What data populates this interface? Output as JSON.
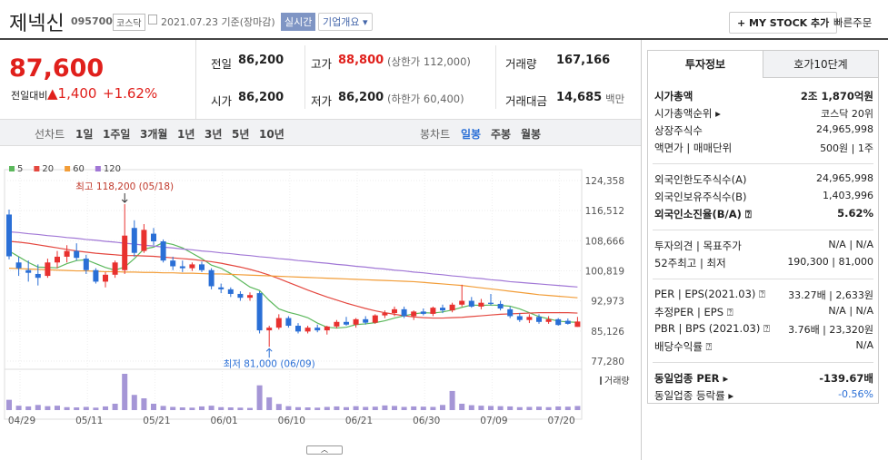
{
  "header": {
    "name": "제넥신",
    "code": "095700",
    "market": "코스닥",
    "date": "2021.07.23 기준(장마감)",
    "realtime": "실시간",
    "overview": "기업개요 ▾",
    "mystock": "+ MY STOCK 추가",
    "quick_order": "빠른주문"
  },
  "price": {
    "current": "87,600",
    "change_label": "전일대비",
    "change": "▲1,400",
    "change_pct": "+1.62%"
  },
  "quote": [
    [
      {
        "label": "전일",
        "value": "86,200"
      },
      {
        "label": "고가",
        "value": "88,800",
        "sub": "(상한가 112,000)"
      },
      {
        "label": "거래량",
        "value": "167,166"
      }
    ],
    [
      {
        "label": "시가",
        "value": "86,200"
      },
      {
        "label": "저가",
        "value": "86,200",
        "sub": "(하한가 60,400)"
      },
      {
        "label": "거래대금",
        "value": "14,685",
        "sub": "백만"
      }
    ]
  ],
  "periods": {
    "line_label": "선차트",
    "line_tabs": [
      "1일",
      "1주일",
      "3개월",
      "1년",
      "3년",
      "5년",
      "10년"
    ],
    "candle_label": "봉차트",
    "candle_tabs": [
      "일봉",
      "주봉",
      "월봉"
    ],
    "active": "일봉"
  },
  "chart": {
    "type": "candlestick",
    "ylim": [
      77280,
      124358
    ],
    "yticks": [
      {
        "value": 124358,
        "label": "124,358"
      },
      {
        "value": 116512,
        "label": "116,512"
      },
      {
        "value": 108666,
        "label": "108,666"
      },
      {
        "value": 100819,
        "label": "100,819"
      },
      {
        "value": 92973,
        "label": "92,973"
      },
      {
        "value": 85126,
        "label": "85,126"
      },
      {
        "value": 77280,
        "label": "77,280"
      }
    ],
    "up_color": "#e8312f",
    "down_color": "#2a6fd6",
    "volume_color": "#a596d6",
    "high_label": "최고 118,200 (05/18)",
    "low_label": "최저 81,000 (06/09)",
    "volume_label": "거래량",
    "categories": [
      "04/29",
      null,
      null,
      null,
      null,
      null,
      null,
      "05/11",
      null,
      null,
      null,
      null,
      null,
      null,
      "05/21",
      null,
      null,
      null,
      null,
      null,
      null,
      "06/01",
      null,
      null,
      null,
      null,
      null,
      null,
      "06/10",
      null,
      null,
      null,
      null,
      null,
      null,
      "06/21",
      null,
      null,
      null,
      null,
      null,
      null,
      "06/30",
      null,
      null,
      null,
      null,
      null,
      null,
      "07/09",
      null,
      null,
      null,
      null,
      null,
      null,
      "07/20",
      null,
      null,
      null
    ],
    "candles": [
      [
        115500,
        116800,
        103800,
        104600
      ],
      [
        103000,
        104500,
        99500,
        101500
      ],
      [
        101000,
        103500,
        98000,
        100300
      ],
      [
        100000,
        102500,
        97000,
        99000
      ],
      [
        99500,
        104000,
        99000,
        103000
      ],
      [
        103000,
        106000,
        101500,
        104500
      ],
      [
        104500,
        107500,
        103000,
        106000
      ],
      [
        106000,
        108000,
        103500,
        104200
      ],
      [
        104000,
        105000,
        100000,
        101000
      ],
      [
        101000,
        101500,
        97500,
        98000
      ],
      [
        98000,
        100500,
        96500,
        99800
      ],
      [
        99800,
        103500,
        99000,
        103000
      ],
      [
        101000,
        118200,
        100000,
        110000
      ],
      [
        112000,
        114000,
        104500,
        105500
      ],
      [
        106000,
        113000,
        105500,
        111500
      ],
      [
        110500,
        112000,
        107500,
        108500
      ],
      [
        108500,
        109000,
        103000,
        103500
      ],
      [
        103500,
        104500,
        101000,
        102000
      ],
      [
        102000,
        103500,
        100500,
        101500
      ],
      [
        101500,
        103000,
        100800,
        102500
      ],
      [
        102500,
        103200,
        100500,
        101000
      ],
      [
        101000,
        101500,
        96000,
        96800
      ],
      [
        96500,
        97500,
        95000,
        96000
      ],
      [
        96000,
        96500,
        94000,
        94800
      ],
      [
        94800,
        95500,
        93000,
        93800
      ],
      [
        93800,
        95200,
        93000,
        94500
      ],
      [
        95000,
        95500,
        84500,
        85300
      ],
      [
        85300,
        86500,
        81000,
        86000
      ],
      [
        86000,
        89500,
        85500,
        88500
      ],
      [
        88500,
        89000,
        86000,
        86500
      ],
      [
        86500,
        87200,
        84500,
        85000
      ],
      [
        85000,
        86500,
        84500,
        86000
      ],
      [
        86000,
        86800,
        84800,
        85300
      ],
      [
        85300,
        86500,
        84200,
        86300
      ],
      [
        86300,
        88000,
        85800,
        87500
      ],
      [
        87500,
        88800,
        86500,
        86800
      ],
      [
        86800,
        88500,
        86000,
        88200
      ],
      [
        88200,
        89000,
        86800,
        87300
      ],
      [
        87300,
        89500,
        87000,
        89200
      ],
      [
        89200,
        90500,
        88500,
        89800
      ],
      [
        89800,
        91500,
        89000,
        90800
      ],
      [
        90800,
        91500,
        88500,
        89000
      ],
      [
        89000,
        90500,
        88000,
        90200
      ],
      [
        90200,
        91000,
        89200,
        89600
      ],
      [
        89600,
        91500,
        89000,
        91200
      ],
      [
        91200,
        92000,
        89800,
        90500
      ],
      [
        90500,
        92500,
        90000,
        92000
      ],
      [
        92000,
        97200,
        91500,
        93000
      ],
      [
        93000,
        94000,
        91200,
        91500
      ],
      [
        91500,
        93500,
        90800,
        92500
      ],
      [
        92500,
        94800,
        91800,
        92200
      ],
      [
        92200,
        93000,
        90500,
        91000
      ],
      [
        90800,
        91500,
        88500,
        89000
      ],
      [
        89000,
        89800,
        87500,
        88000
      ],
      [
        88000,
        89500,
        87200,
        88800
      ],
      [
        88800,
        89500,
        87000,
        87500
      ],
      [
        87500,
        89000,
        87000,
        88200
      ],
      [
        88200,
        88500,
        86500,
        86700
      ],
      [
        87800,
        88400,
        86800,
        87000
      ],
      [
        86200,
        88800,
        86200,
        87600
      ]
    ],
    "volumes": [
      420000,
      180000,
      150000,
      210000,
      160000,
      180000,
      120000,
      110000,
      130000,
      100000,
      150000,
      260000,
      1480000,
      620000,
      480000,
      260000,
      170000,
      130000,
      110000,
      100000,
      150000,
      180000,
      120000,
      110000,
      100000,
      90000,
      1010000,
      520000,
      250000,
      160000,
      120000,
      110000,
      100000,
      130000,
      150000,
      120000,
      160000,
      130000,
      140000,
      190000,
      170000,
      130000,
      150000,
      140000,
      130000,
      210000,
      780000,
      260000,
      200000,
      180000,
      170000,
      160000,
      150000,
      120000,
      130000,
      140000,
      120000,
      150000,
      140000,
      167166
    ],
    "ma": [
      {
        "name": "5",
        "color": "#5cb85c",
        "values": [
          106000,
          104500,
          103000,
          101800,
          101700,
          101600,
          102700,
          103500,
          103700,
          102700,
          101700,
          101000,
          101800,
          104000,
          106500,
          107000,
          108200,
          107700,
          106800,
          105400,
          104000,
          102300,
          101500,
          100100,
          98300,
          96600,
          95700,
          93100,
          90900,
          90000,
          89400,
          88600,
          87200,
          86100,
          85900,
          86100,
          86800,
          87000,
          87300,
          87800,
          88500,
          89100,
          89600,
          89900,
          89800,
          90100,
          90600,
          91300,
          91900,
          91800,
          91900,
          91800,
          91600,
          90900,
          89900,
          88900,
          88300,
          87700,
          87500,
          87400
        ]
      },
      {
        "name": "20",
        "color": "#e4473f",
        "values": [
          108500,
          108300,
          108000,
          107600,
          107200,
          106800,
          106400,
          106000,
          105700,
          105400,
          105200,
          105000,
          104800,
          104800,
          104700,
          104600,
          104400,
          104200,
          104000,
          103800,
          103500,
          103200,
          102800,
          102300,
          101800,
          101200,
          100500,
          99700,
          98800,
          97800,
          96800,
          95800,
          94900,
          94000,
          93200,
          92400,
          91700,
          91000,
          90400,
          89900,
          89500,
          89100,
          88800,
          88600,
          88500,
          88500,
          88600,
          88700,
          88900,
          89100,
          89300,
          89500,
          89600,
          89700,
          89800,
          89900,
          89900,
          89900,
          89900,
          89800
        ]
      },
      {
        "name": "60",
        "color": "#f29d38",
        "values": [
          101500,
          101400,
          101300,
          101200,
          101100,
          101000,
          100900,
          100800,
          100800,
          100700,
          100600,
          100600,
          100500,
          100500,
          100400,
          100400,
          100300,
          100300,
          100200,
          100200,
          100100,
          100000,
          100000,
          99900,
          99800,
          99700,
          99600,
          99500,
          99400,
          99300,
          99200,
          99100,
          99000,
          98900,
          98800,
          98700,
          98600,
          98500,
          98400,
          98300,
          98200,
          98100,
          98000,
          97800,
          97600,
          97400,
          97200,
          97000,
          96700,
          96400,
          96100,
          95800,
          95500,
          95200,
          94900,
          94600,
          94400,
          94200,
          94000,
          93800
        ]
      },
      {
        "name": "120",
        "color": "#a177d6",
        "values": [
          111000,
          110800,
          110500,
          110300,
          110000,
          109800,
          109500,
          109300,
          109000,
          108800,
          108500,
          108300,
          108000,
          107800,
          107500,
          107300,
          107000,
          106800,
          106500,
          106300,
          106000,
          105800,
          105500,
          105300,
          105000,
          104800,
          104500,
          104300,
          104000,
          103800,
          103500,
          103300,
          103000,
          102800,
          102500,
          102300,
          102000,
          101800,
          101500,
          101300,
          101000,
          100800,
          100500,
          100300,
          100000,
          99800,
          99500,
          99300,
          99000,
          98800,
          98500,
          98300,
          98000,
          97800,
          97600,
          97400,
          97200,
          97000,
          96800,
          96600
        ]
      }
    ]
  },
  "invest": {
    "tabs": [
      "투자정보",
      "호가10단계"
    ],
    "sections": [
      [
        {
          "label": "시가총액",
          "value": "2조 1,870억원",
          "bold": true
        },
        {
          "label": "시가총액순위 ▸",
          "value": "코스닥 20위"
        },
        {
          "label": "상장주식수",
          "value": "24,965,998"
        },
        {
          "label": "액면가 | 매매단위",
          "value": "500원 | 1주"
        }
      ],
      [
        {
          "label": "외국인한도주식수(A)",
          "value": "24,965,998"
        },
        {
          "label": "외국인보유주식수(B)",
          "value": "1,403,996"
        },
        {
          "label": "외국인소진율(B/A) ⍰",
          "value": "5.62%",
          "bold": true
        }
      ],
      [
        {
          "label": "투자의견 | 목표주가",
          "value": "N/A | N/A"
        },
        {
          "label": "52주최고 | 최저",
          "value": "190,300 | 81,000"
        }
      ],
      [
        {
          "label": "PER | EPS(2021.03) ⍰",
          "value": "33.27배 | 2,633원"
        },
        {
          "label": "추정PER | EPS ⍰",
          "value": "N/A | N/A"
        },
        {
          "label": "PBR | BPS (2021.03) ⍰",
          "value": "3.76배 | 23,320원"
        },
        {
          "label": "배당수익률 ⍰",
          "value": "N/A"
        }
      ],
      [
        {
          "label": "동일업종 PER ▸",
          "value": "-139.67배",
          "bold": true
        },
        {
          "label": "동일업종 등락률 ▸",
          "value": "-0.56%",
          "blue": true
        }
      ]
    ]
  }
}
